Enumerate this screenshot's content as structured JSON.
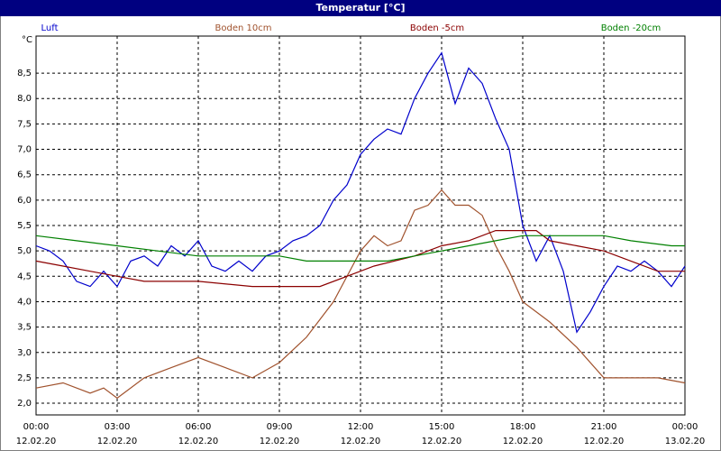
{
  "chart_data": {
    "type": "line",
    "title": "Temperatur [°C]",
    "y_unit": "°C",
    "xlim": [
      0,
      24
    ],
    "ylim": [
      1.77,
      9.23
    ],
    "xticks": [
      {
        "value": 0,
        "label": "00:00"
      },
      {
        "value": 3,
        "label": "03:00"
      },
      {
        "value": 6,
        "label": "06:00"
      },
      {
        "value": 9,
        "label": "09:00"
      },
      {
        "value": 12,
        "label": "12:00"
      },
      {
        "value": 15,
        "label": "15:00"
      },
      {
        "value": 18,
        "label": "18:00"
      },
      {
        "value": 21,
        "label": "21:00"
      },
      {
        "value": 24,
        "label": "00:00"
      }
    ],
    "xtick_dates": [
      "12.02.20",
      "12.02.20",
      "12.02.20",
      "12.02.20",
      "12.02.20",
      "12.02.20",
      "12.02.20",
      "12.02.20",
      "13.02.20"
    ],
    "yticks": [
      {
        "value": 2,
        "label": "2,0"
      },
      {
        "value": 2.5,
        "label": "2,5"
      },
      {
        "value": 3,
        "label": "3,0"
      },
      {
        "value": 3.5,
        "label": "3,5"
      },
      {
        "value": 4,
        "label": "4,0"
      },
      {
        "value": 4.5,
        "label": "4,5"
      },
      {
        "value": 5,
        "label": "5,0"
      },
      {
        "value": 5.5,
        "label": "5,5"
      },
      {
        "value": 6,
        "label": "6,0"
      },
      {
        "value": 6.5,
        "label": "6,5"
      },
      {
        "value": 7,
        "label": "7,0"
      },
      {
        "value": 7.5,
        "label": "7,5"
      },
      {
        "value": 8,
        "label": "8,0"
      },
      {
        "value": 8.5,
        "label": "8,5"
      }
    ],
    "grid": true,
    "series": [
      {
        "name": "Luft",
        "color": "#0000cc",
        "x": [
          0,
          0.5,
          1,
          1.5,
          2,
          2.5,
          3,
          3.5,
          4,
          4.5,
          5,
          5.5,
          6,
          6.5,
          7,
          7.5,
          8,
          8.5,
          9,
          9.5,
          10,
          10.5,
          11,
          11.5,
          12,
          12.5,
          13,
          13.5,
          14,
          14.5,
          15,
          15.5,
          16,
          16.5,
          17,
          17.5,
          18,
          18.5,
          19,
          19.5,
          20,
          20.5,
          21,
          21.5,
          22,
          22.5,
          23,
          23.5,
          24
        ],
        "values": [
          5.1,
          5.0,
          4.8,
          4.4,
          4.3,
          4.6,
          4.3,
          4.8,
          4.9,
          4.7,
          5.1,
          4.9,
          5.2,
          4.7,
          4.6,
          4.8,
          4.6,
          4.9,
          5.0,
          5.2,
          5.3,
          5.5,
          6.0,
          6.3,
          6.9,
          7.2,
          7.4,
          7.3,
          8.0,
          8.5,
          8.9,
          7.9,
          8.6,
          8.3,
          7.6,
          7.0,
          5.5,
          4.8,
          5.3,
          4.6,
          3.4,
          3.8,
          4.3,
          4.7,
          4.6,
          4.8,
          4.6,
          4.3,
          4.7
        ]
      },
      {
        "name": "Boden 10cm",
        "color": "#a0522d",
        "x": [
          0,
          1,
          2,
          2.5,
          3,
          4,
          5,
          6,
          7,
          8,
          9,
          10,
          11,
          12,
          12.5,
          13,
          13.5,
          14,
          14.5,
          15,
          15.5,
          16,
          16.5,
          17,
          17.5,
          18,
          19,
          20,
          21,
          22,
          23,
          24
        ],
        "values": [
          2.3,
          2.4,
          2.2,
          2.3,
          2.1,
          2.5,
          2.7,
          2.9,
          2.7,
          2.5,
          2.8,
          3.3,
          4.0,
          5.0,
          5.3,
          5.1,
          5.2,
          5.8,
          5.9,
          6.2,
          5.9,
          5.9,
          5.7,
          5.1,
          4.6,
          4.0,
          3.6,
          3.1,
          2.5,
          2.5,
          2.5,
          2.4
        ]
      },
      {
        "name": "Boden -5cm",
        "color": "#8b0000",
        "x": [
          0,
          1,
          2,
          3,
          4,
          6,
          8,
          10.5,
          11.5,
          12.5,
          14,
          15,
          16,
          17,
          18.5,
          19,
          20,
          21,
          22,
          23,
          24
        ],
        "values": [
          4.8,
          4.7,
          4.6,
          4.5,
          4.4,
          4.4,
          4.3,
          4.3,
          4.5,
          4.7,
          4.9,
          5.1,
          5.2,
          5.4,
          5.4,
          5.2,
          5.1,
          5.0,
          4.8,
          4.6,
          4.6
        ]
      },
      {
        "name": "Boden -20cm",
        "color": "#008000",
        "x": [
          0,
          1.5,
          3,
          4.5,
          6,
          9,
          10,
          13,
          14,
          15,
          16,
          17,
          18,
          21,
          22,
          23.5,
          24
        ],
        "values": [
          5.3,
          5.2,
          5.1,
          5.0,
          4.9,
          4.9,
          4.8,
          4.8,
          4.9,
          5.0,
          5.1,
          5.2,
          5.3,
          5.3,
          5.2,
          5.1,
          5.1
        ]
      }
    ]
  }
}
